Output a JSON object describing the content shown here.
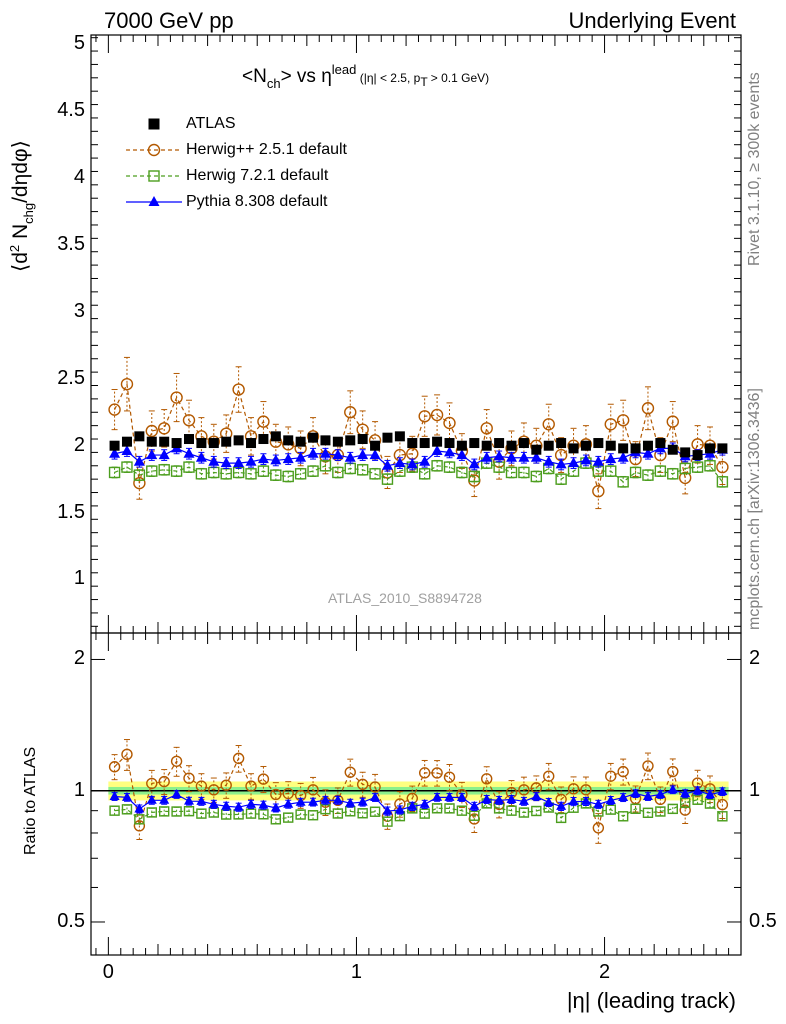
{
  "header": {
    "left": "7000 GeV pp",
    "right": "Underlying Event"
  },
  "side_labels": {
    "rivet": "Rivet 3.1.10, ≥ 300k events",
    "mcplots": "mcplots.cern.ch [arXiv:1306.3436]"
  },
  "analysis_id": "ATLAS_2010_S8894728",
  "chart_data": {
    "type": "scatter",
    "title": {
      "main": "<N",
      "main_sub": "ch",
      "main_rest": "> vs η",
      "main_sup": "lead",
      "cut_a": " (|η| < 2.5, p",
      "cut_sub": "T",
      "cut_b": " > 0.1 GeV)"
    },
    "xlabel": "|η| (leading track)",
    "ylabel": {
      "a": "⟨d",
      "sup": "2",
      "b": " N",
      "sub": "chg",
      "c": "/dηdφ⟩"
    },
    "ratio_ylabel": "Ratio to ATLAS",
    "xlim": [
      -0.07,
      2.55
    ],
    "ylim": [
      0.6,
      5.07
    ],
    "ratio_ylim": [
      0.42,
      2.3
    ],
    "xticks": [
      "0",
      "1",
      "2"
    ],
    "yticks": [
      "1",
      "1.5",
      "2",
      "2.5",
      "3",
      "3.5",
      "4",
      "4.5",
      "5"
    ],
    "ratio_yticks": [
      "0.5",
      "1",
      "2"
    ],
    "x": [
      0.025,
      0.075,
      0.125,
      0.175,
      0.225,
      0.275,
      0.325,
      0.375,
      0.425,
      0.475,
      0.525,
      0.575,
      0.625,
      0.675,
      0.725,
      0.775,
      0.825,
      0.875,
      0.925,
      0.975,
      1.025,
      1.075,
      1.125,
      1.175,
      1.225,
      1.275,
      1.325,
      1.375,
      1.425,
      1.475,
      1.525,
      1.575,
      1.625,
      1.675,
      1.725,
      1.775,
      1.825,
      1.875,
      1.925,
      1.975,
      2.025,
      2.075,
      2.125,
      2.175,
      2.225,
      2.275,
      2.325,
      2.375,
      2.425,
      2.475
    ],
    "band": {
      "inner_half": 0.02,
      "outer_half": 0.05
    },
    "series": [
      {
        "name": "ATLAS",
        "color": "#000000",
        "marker": "square",
        "values": [
          2.0,
          2.03,
          2.07,
          2.03,
          2.03,
          2.02,
          2.05,
          2.02,
          2.02,
          2.03,
          2.04,
          2.02,
          2.05,
          2.07,
          2.04,
          2.03,
          2.06,
          2.04,
          2.03,
          2.04,
          2.05,
          2.0,
          2.06,
          2.07,
          2.02,
          2.02,
          2.03,
          2.02,
          2.0,
          2.02,
          2.0,
          2.02,
          2.0,
          2.02,
          1.97,
          2.0,
          2.02,
          1.98,
          2.0,
          2.02,
          2.0,
          1.98,
          1.98,
          2.0,
          2.02,
          1.97,
          1.95,
          1.93,
          1.98,
          1.98
        ],
        "errors": [
          0.02,
          0.02,
          0.02,
          0.02,
          0.02,
          0.02,
          0.02,
          0.02,
          0.02,
          0.02,
          0.02,
          0.02,
          0.02,
          0.02,
          0.02,
          0.02,
          0.02,
          0.02,
          0.02,
          0.02,
          0.02,
          0.02,
          0.02,
          0.02,
          0.02,
          0.02,
          0.02,
          0.02,
          0.02,
          0.02,
          0.02,
          0.02,
          0.02,
          0.02,
          0.02,
          0.02,
          0.02,
          0.02,
          0.02,
          0.02,
          0.02,
          0.02,
          0.02,
          0.02,
          0.02,
          0.02,
          0.02,
          0.02,
          0.02,
          0.02
        ]
      },
      {
        "name": "Herwig++ 2.5.1 default",
        "color": "#b35900",
        "marker": "circle",
        "dash": "4,3",
        "values": [
          2.27,
          2.46,
          1.72,
          2.11,
          2.13,
          2.36,
          2.19,
          2.07,
          2.03,
          2.09,
          2.42,
          2.07,
          2.18,
          2.03,
          2.01,
          1.98,
          2.07,
          1.92,
          1.93,
          2.25,
          2.12,
          2.04,
          1.8,
          1.93,
          1.94,
          2.22,
          2.23,
          2.17,
          1.96,
          1.74,
          2.13,
          1.88,
          1.98,
          2.03,
          2.0,
          2.16,
          1.93,
          2.0,
          2.01,
          1.66,
          2.16,
          2.19,
          1.9,
          2.28,
          1.93,
          2.18,
          1.76,
          2.01,
          2.0,
          1.84
        ],
        "errors": [
          0.15,
          0.2,
          0.12,
          0.15,
          0.14,
          0.18,
          0.15,
          0.14,
          0.13,
          0.14,
          0.17,
          0.14,
          0.15,
          0.13,
          0.13,
          0.13,
          0.14,
          0.13,
          0.13,
          0.16,
          0.14,
          0.14,
          0.12,
          0.13,
          0.13,
          0.15,
          0.15,
          0.15,
          0.13,
          0.12,
          0.14,
          0.13,
          0.13,
          0.14,
          0.13,
          0.15,
          0.13,
          0.13,
          0.14,
          0.13,
          0.15,
          0.15,
          0.13,
          0.16,
          0.13,
          0.15,
          0.12,
          0.14,
          0.14,
          0.13
        ]
      },
      {
        "name": "Herwig 7.2.1 default",
        "color": "#4c9e1e",
        "marker": "square-open",
        "dash": "4,3",
        "values": [
          1.8,
          1.84,
          1.78,
          1.81,
          1.82,
          1.81,
          1.84,
          1.79,
          1.8,
          1.79,
          1.8,
          1.79,
          1.81,
          1.78,
          1.77,
          1.79,
          1.81,
          1.85,
          1.8,
          1.83,
          1.82,
          1.79,
          1.75,
          1.81,
          1.84,
          1.79,
          1.85,
          1.84,
          1.8,
          1.77,
          1.87,
          1.84,
          1.8,
          1.8,
          1.77,
          1.83,
          1.75,
          1.81,
          1.87,
          1.81,
          1.81,
          1.73,
          1.8,
          1.78,
          1.81,
          1.79,
          1.83,
          1.84,
          1.85,
          1.73
        ],
        "errors": [
          0.04,
          0.04,
          0.04,
          0.04,
          0.04,
          0.04,
          0.04,
          0.04,
          0.04,
          0.04,
          0.04,
          0.04,
          0.04,
          0.04,
          0.04,
          0.04,
          0.04,
          0.04,
          0.04,
          0.04,
          0.04,
          0.04,
          0.04,
          0.04,
          0.04,
          0.04,
          0.04,
          0.04,
          0.04,
          0.04,
          0.04,
          0.04,
          0.04,
          0.04,
          0.04,
          0.04,
          0.04,
          0.04,
          0.04,
          0.04,
          0.04,
          0.04,
          0.04,
          0.04,
          0.04,
          0.04,
          0.04,
          0.04,
          0.04,
          0.04
        ]
      },
      {
        "name": "Pythia 8.308 default",
        "color": "#0000ff",
        "marker": "triangle",
        "dash": "",
        "values": [
          1.94,
          1.96,
          1.88,
          1.93,
          1.93,
          1.98,
          1.94,
          1.91,
          1.88,
          1.87,
          1.87,
          1.88,
          1.9,
          1.89,
          1.9,
          1.91,
          1.94,
          1.94,
          1.93,
          1.91,
          1.93,
          1.93,
          1.85,
          1.87,
          1.86,
          1.88,
          1.96,
          1.95,
          1.93,
          1.86,
          1.91,
          1.92,
          1.91,
          1.91,
          1.91,
          1.88,
          1.86,
          1.87,
          1.89,
          1.88,
          1.9,
          1.91,
          1.95,
          1.94,
          1.98,
          1.98,
          1.92,
          1.93,
          1.94,
          1.97
        ],
        "errors": [
          0.04,
          0.04,
          0.04,
          0.04,
          0.04,
          0.04,
          0.04,
          0.04,
          0.04,
          0.04,
          0.04,
          0.04,
          0.04,
          0.04,
          0.04,
          0.04,
          0.04,
          0.04,
          0.04,
          0.04,
          0.04,
          0.04,
          0.04,
          0.04,
          0.04,
          0.04,
          0.04,
          0.04,
          0.04,
          0.04,
          0.04,
          0.04,
          0.04,
          0.04,
          0.04,
          0.04,
          0.04,
          0.04,
          0.04,
          0.04,
          0.04,
          0.04,
          0.04,
          0.04,
          0.04,
          0.04,
          0.04,
          0.04,
          0.04,
          0.04
        ]
      }
    ]
  }
}
